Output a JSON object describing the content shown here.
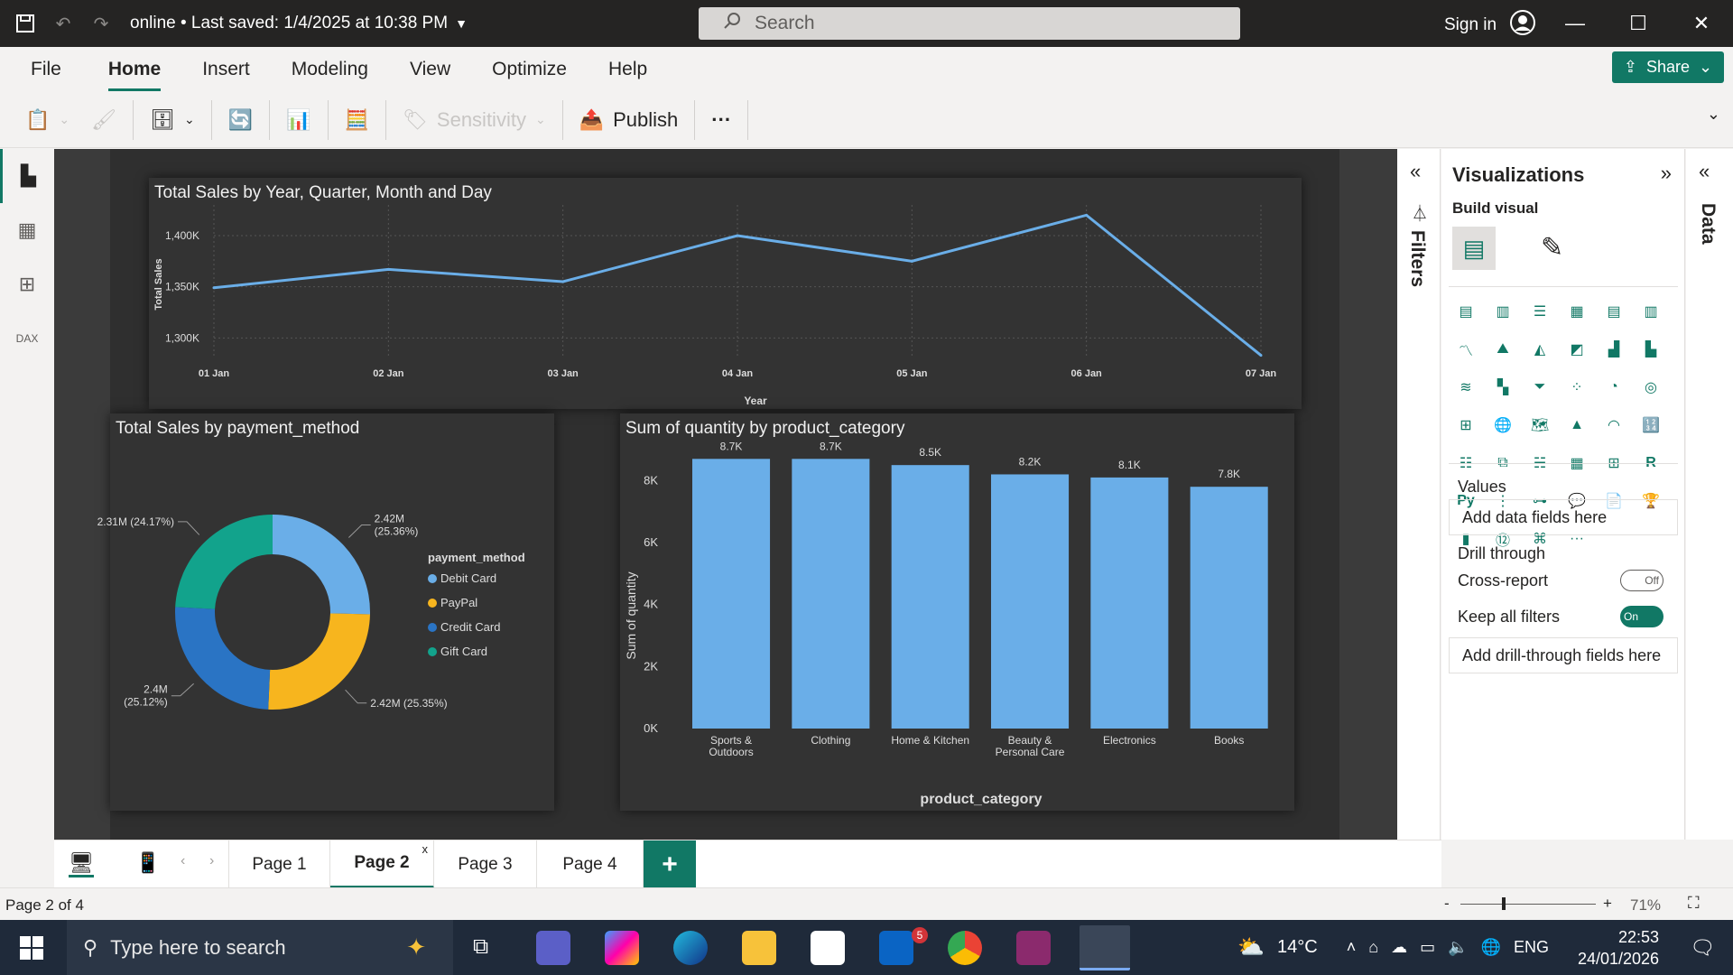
{
  "titlebar": {
    "title": "online • Last saved: 1/4/2025 at 10:38 PM",
    "search_placeholder": "Search",
    "signin": "Sign in"
  },
  "menu": {
    "items": [
      "File",
      "Home",
      "Insert",
      "Modeling",
      "View",
      "Optimize",
      "Help"
    ],
    "active": "Home",
    "share": "Share"
  },
  "ribbon": {
    "sensitivity": "Sensitivity",
    "publish": "Publish",
    "more": "···"
  },
  "line_chart": {
    "title": "Total Sales by Year, Quarter, Month and Day",
    "ylabel": "Total Sales",
    "xlabel": "Year",
    "yticks": [
      "1,400K",
      "1,350K",
      "1,300K"
    ]
  },
  "donut_chart": {
    "title": "Total Sales by payment_method",
    "legend_title": "payment_method"
  },
  "bar_chart": {
    "title": "Sum of quantity by product_category",
    "ylabel": "Sum of quantity",
    "xlabel": "product_category",
    "yticks": [
      "8K",
      "6K",
      "4K",
      "2K",
      "0K"
    ]
  },
  "chart_data": [
    {
      "type": "line",
      "title": "Total Sales by Year, Quarter, Month and Day",
      "xlabel": "Year",
      "ylabel": "Total Sales",
      "categories": [
        "01 Jan",
        "02 Jan",
        "03 Jan",
        "04 Jan",
        "05 Jan",
        "06 Jan",
        "07 Jan"
      ],
      "values": [
        1349000,
        1367000,
        1355000,
        1400000,
        1375000,
        1420000,
        1283000
      ],
      "ylim": [
        1280000,
        1430000
      ],
      "color": "#6aaee8",
      "grid": true
    },
    {
      "type": "pie",
      "title": "Total Sales by payment_method",
      "legend_title": "payment_method",
      "legend_position": "right",
      "slices": [
        {
          "name": "Debit Card",
          "value": 25.36,
          "label": "2.42M\n(25.36%)",
          "color": "#6aaee8"
        },
        {
          "name": "PayPal",
          "value": 25.35,
          "label": "2.42M (25.35%)",
          "color": "#f7b51e"
        },
        {
          "name": "Credit Card",
          "value": 25.12,
          "label": "2.4M\n(25.12%)",
          "color": "#2a74c4"
        },
        {
          "name": "Gift Card",
          "value": 24.17,
          "label": "2.31M (24.17%)",
          "color": "#12a38c"
        }
      ]
    },
    {
      "type": "bar",
      "title": "Sum of quantity by product_category",
      "xlabel": "product_category",
      "ylabel": "Sum of quantity",
      "categories": [
        "Sports &\nOutdoors",
        "Clothing",
        "Home & Kitchen",
        "Beauty &\nPersonal Care",
        "Electronics",
        "Books"
      ],
      "values": [
        8700,
        8700,
        8500,
        8200,
        8100,
        7800
      ],
      "labels": [
        "8.7K",
        "8.7K",
        "8.5K",
        "8.2K",
        "8.1K",
        "7.8K"
      ],
      "ylim": [
        0,
        9000
      ],
      "color": "#6aaee8"
    }
  ],
  "filters": {
    "label": "Filters"
  },
  "viz": {
    "title": "Visualizations",
    "build_visual": "Build visual",
    "values_label": "Values",
    "values_drop": "Add data fields here",
    "drill_label": "Drill through",
    "cross_report": "Cross-report",
    "cross_state": "Off",
    "keep_filters": "Keep all filters",
    "keep_state": "On",
    "drill_drop": "Add drill-through fields here"
  },
  "data_pane": {
    "label": "Data"
  },
  "pages": {
    "tabs": [
      "Page 1",
      "Page 2",
      "Page 3",
      "Page 4"
    ],
    "active": "Page 2",
    "add": "+"
  },
  "status": {
    "page": "Page 2 of 4",
    "zoom": "71%"
  },
  "taskbar": {
    "search": "Type here to search",
    "weather": "14°C",
    "lang": "ENG",
    "time": "22:53",
    "date": "24/01/2026",
    "badge": "5"
  }
}
